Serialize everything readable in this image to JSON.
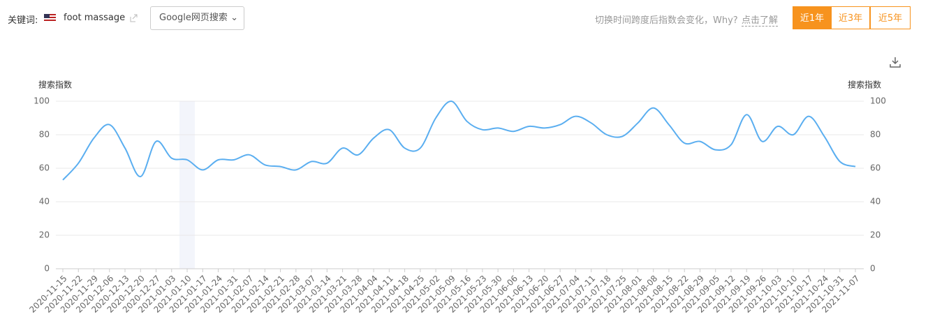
{
  "header": {
    "keyword_label": "关键词:",
    "keyword": "foot massage",
    "source": "Google网页搜索",
    "note": "切换时间跨度后指数会变化，Why?",
    "link": "点击了解",
    "ranges": [
      "近1年",
      "近3年",
      "近5年"
    ]
  },
  "chart_data": {
    "type": "line",
    "ylabel": "搜索指数",
    "y2label": "搜索指数",
    "categories": [
      "2020-11-15",
      "2020-11-22",
      "2020-11-29",
      "2020-12-06",
      "2020-12-13",
      "2020-12-20",
      "2020-12-27",
      "2021-01-03",
      "2021-01-10",
      "2021-01-17",
      "2021-01-24",
      "2021-01-31",
      "2021-02-07",
      "2021-02-14",
      "2021-02-21",
      "2021-02-28",
      "2021-03-07",
      "2021-03-14",
      "2021-03-21",
      "2021-03-28",
      "2021-04-04",
      "2021-04-11",
      "2021-04-18",
      "2021-04-25",
      "2021-05-02",
      "2021-05-09",
      "2021-05-16",
      "2021-05-23",
      "2021-05-30",
      "2021-06-06",
      "2021-06-13",
      "2021-06-20",
      "2021-06-27",
      "2021-07-04",
      "2021-07-11",
      "2021-07-18",
      "2021-07-25",
      "2021-08-01",
      "2021-08-08",
      "2021-08-15",
      "2021-08-22",
      "2021-08-29",
      "2021-09-05",
      "2021-09-12",
      "2021-09-19",
      "2021-09-26",
      "2021-10-03",
      "2021-10-10",
      "2021-10-17",
      "2021-10-24",
      "2021-10-31",
      "2021-11-07"
    ],
    "series": [
      {
        "name": "foot massage",
        "color": "#5aaef0",
        "values": [
          53,
          63,
          78,
          86,
          72,
          55,
          76,
          66,
          65,
          59,
          65,
          65,
          68,
          62,
          61,
          59,
          64,
          63,
          72,
          68,
          78,
          83,
          72,
          72,
          90,
          100,
          88,
          83,
          84,
          82,
          85,
          84,
          86,
          91,
          87,
          80,
          79,
          87,
          96,
          86,
          75,
          76,
          71,
          74,
          92,
          76,
          85,
          80,
          91,
          79,
          64,
          61
        ]
      }
    ],
    "ylim": [
      0,
      100
    ],
    "yticks": [
      0,
      20,
      40,
      60,
      80,
      100
    ],
    "y2lim": [
      0,
      100
    ],
    "y2ticks": [
      0,
      20,
      40,
      60,
      80,
      100
    ],
    "grid": true
  }
}
